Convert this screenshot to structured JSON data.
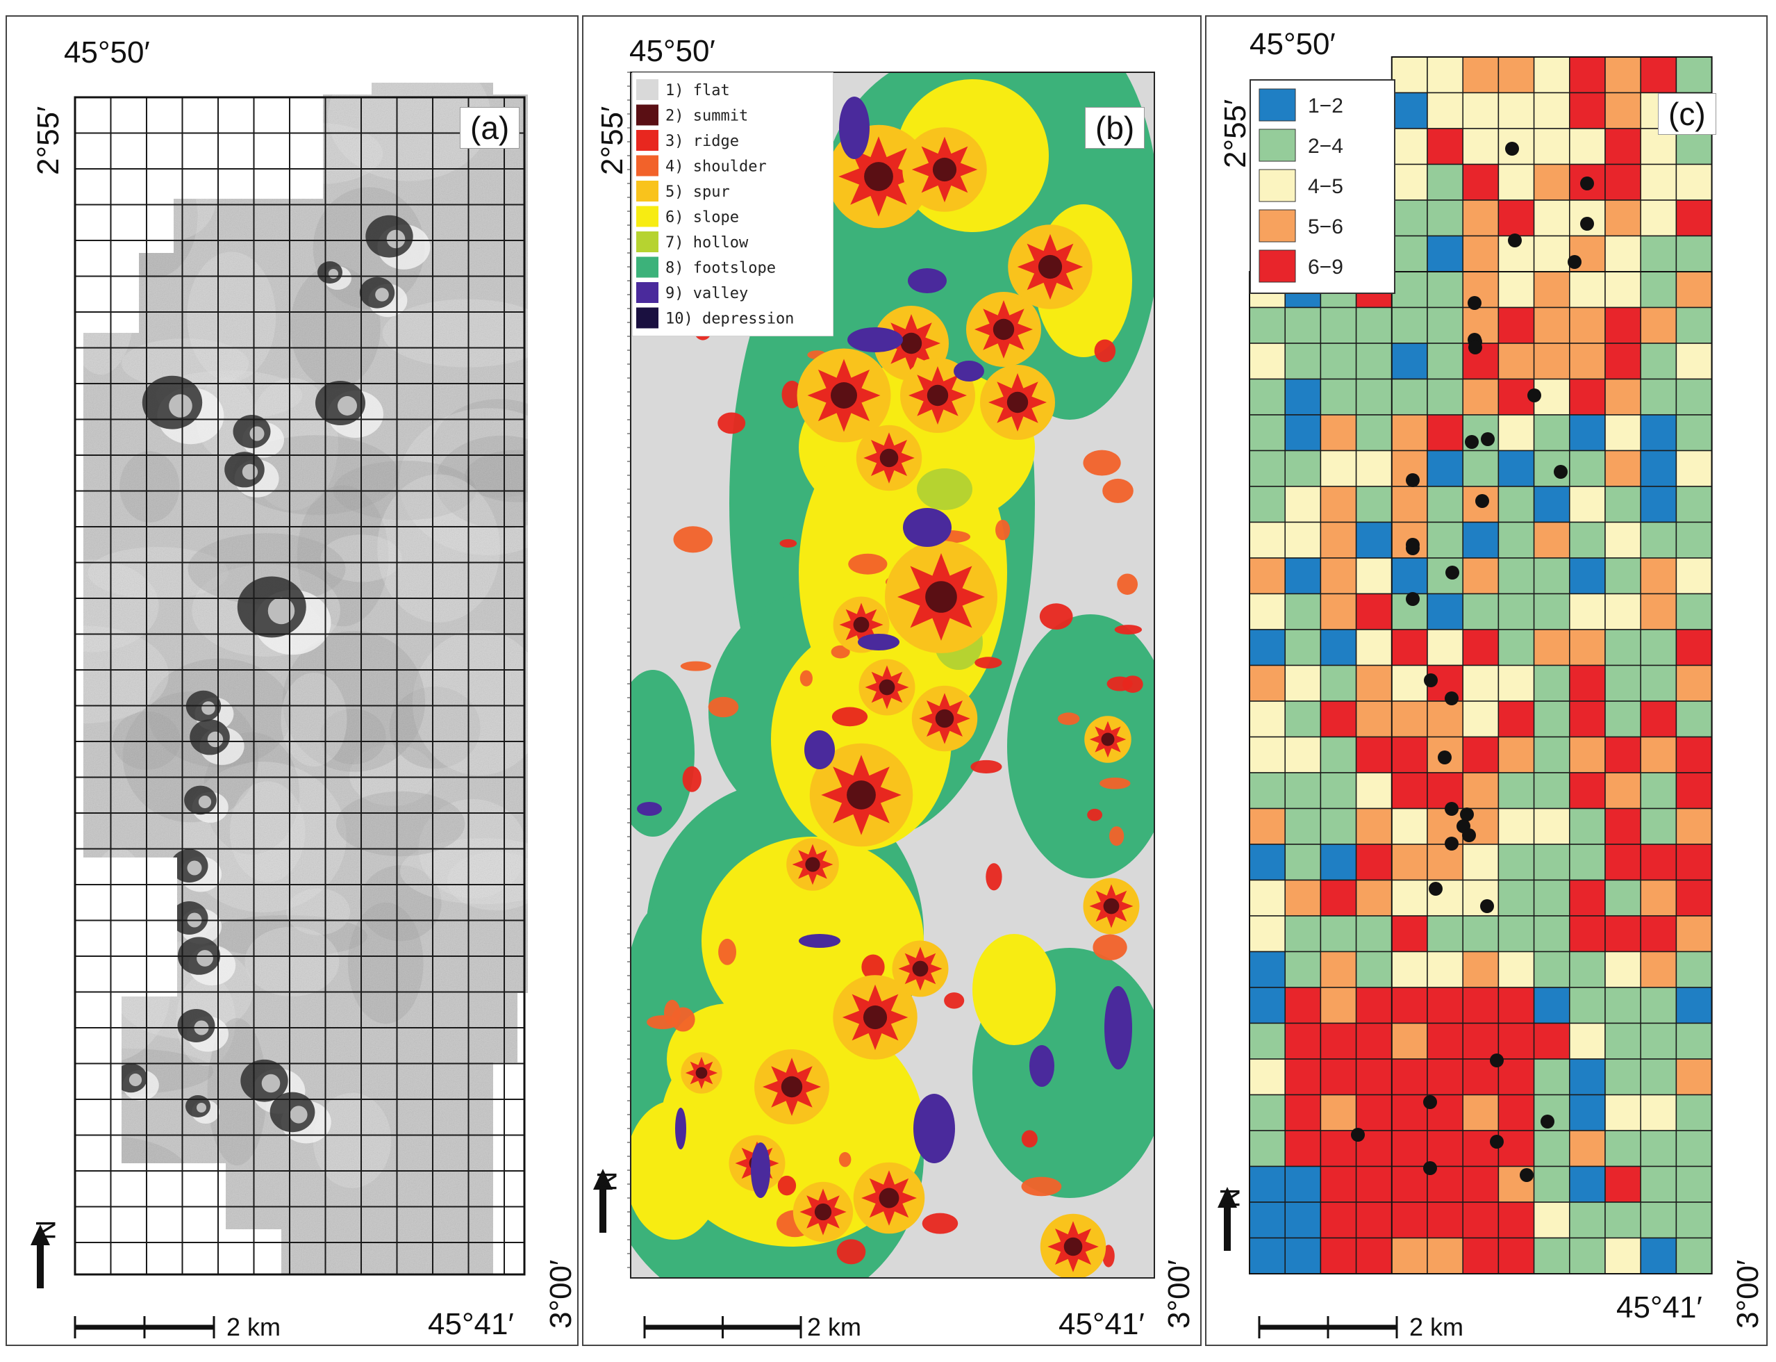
{
  "panels": {
    "a": {
      "letter": "(a)",
      "lon_top": "45°50′",
      "lon_bottom": "45°41′",
      "lat_top": "2°55′",
      "lat_bottom": "3°00′",
      "scale_label": "2 km",
      "north": "N"
    },
    "b": {
      "letter": "(b)",
      "lon_top": "45°50′",
      "lon_bottom": "45°41′",
      "lat_top": "2°55′",
      "lat_bottom": "3°00′",
      "scale_label": "2 km",
      "north": "N",
      "legend": [
        {
          "label": "1) flat",
          "color": "#d9d9d9"
        },
        {
          "label": "2) summit",
          "color": "#5a0f14"
        },
        {
          "label": "3) ridge",
          "color": "#e8271f"
        },
        {
          "label": "4) shoulder",
          "color": "#f2622a"
        },
        {
          "label": "5) spur",
          "color": "#f9c31c"
        },
        {
          "label": "6) slope",
          "color": "#f7ec12"
        },
        {
          "label": "7) hollow",
          "color": "#b6d330"
        },
        {
          "label": "8) footslope",
          "color": "#3cb27a"
        },
        {
          "label": "9) valley",
          "color": "#4a2a9c"
        },
        {
          "label": "10) depression",
          "color": "#1a1040"
        }
      ]
    },
    "c": {
      "letter": "(c)",
      "lon_top": "45°50′",
      "lon_bottom": "45°41′",
      "lat_top": "2°55′",
      "lat_bottom": "3°00′",
      "scale_label": "2 km",
      "north": "N",
      "legend": [
        {
          "label": "1−2",
          "color": "#1f7fc4"
        },
        {
          "label": "2−4",
          "color": "#95cc9a"
        },
        {
          "label": "4−5",
          "color": "#fbf4c0"
        },
        {
          "label": "5−6",
          "color": "#f7a25e"
        },
        {
          "label": "6−9",
          "color": "#e8252b"
        }
      ]
    }
  },
  "colors": {
    "c_classes": [
      "#1f7fc4",
      "#95cc9a",
      "#fbf4c0",
      "#f7a25e",
      "#e8252b"
    ],
    "grid_line": "#1a1a1a",
    "hillshade": "#b9b9b9"
  }
}
